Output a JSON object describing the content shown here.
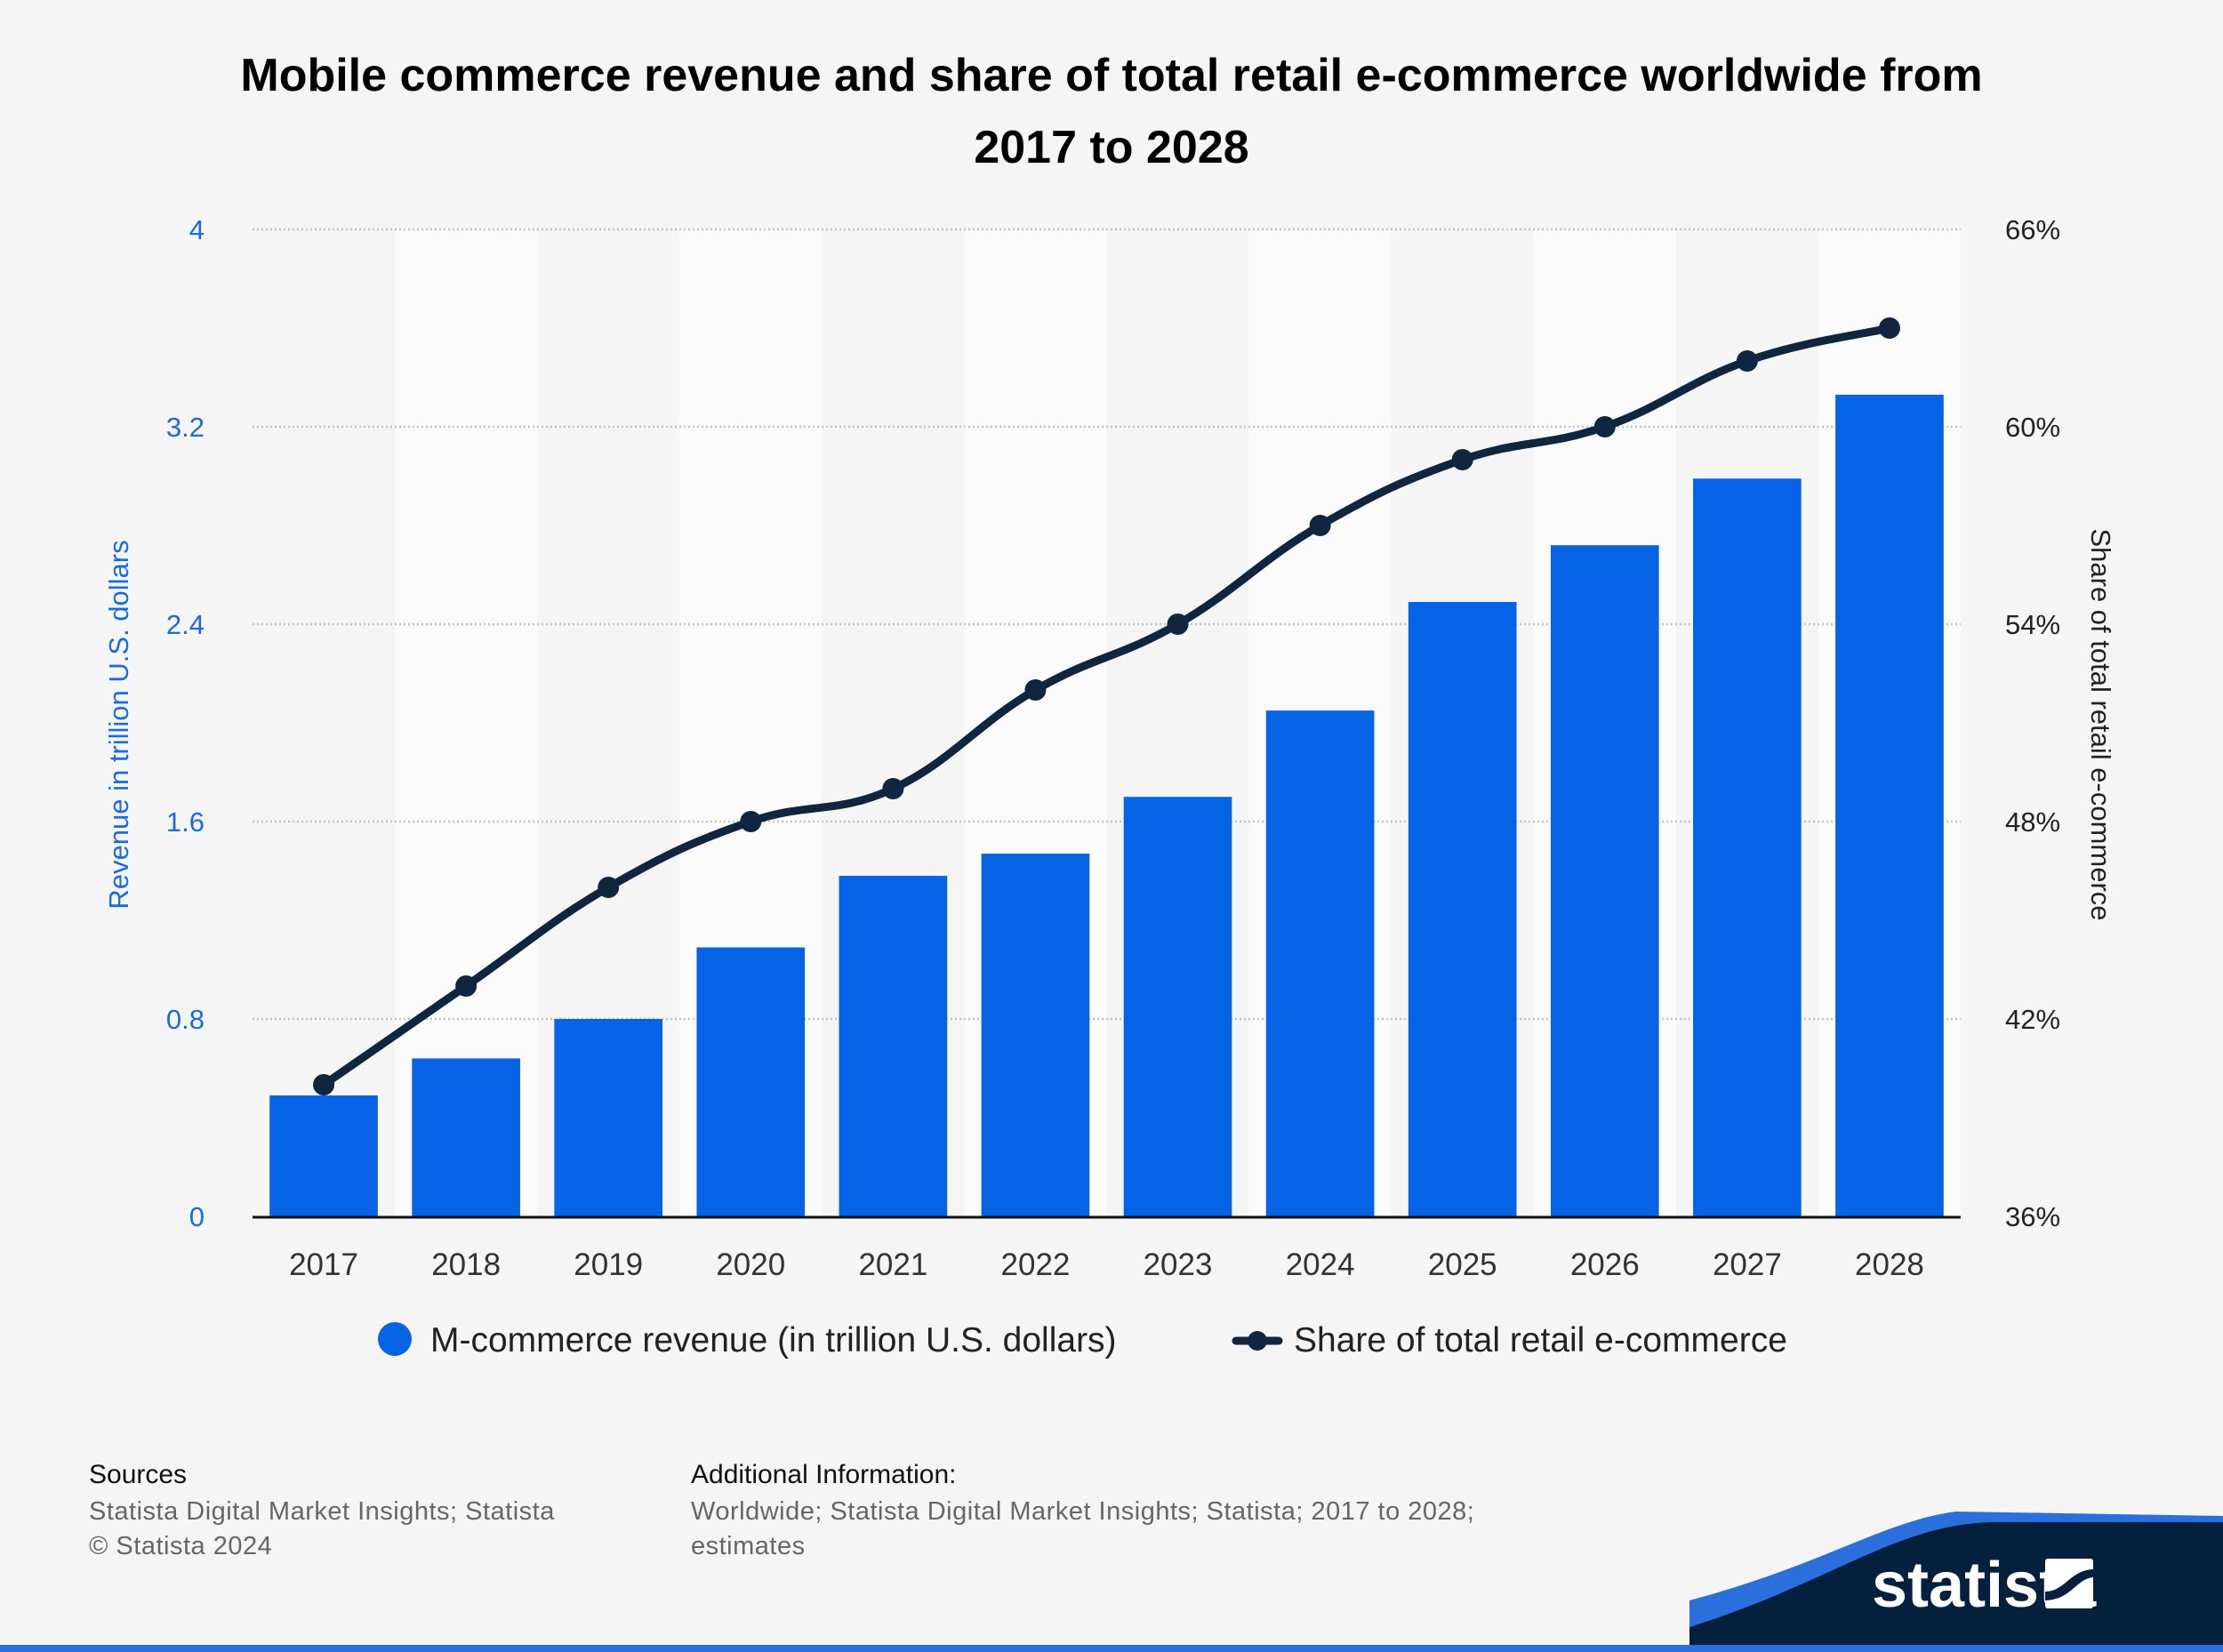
{
  "chart_data": {
    "type": "bar+line",
    "title": "Mobile commerce revenue and share of total retail e-commerce worldwide from 2017 to 2028",
    "title_lines": [
      "Mobile commerce revenue and share of total retail e-commerce worldwide from",
      "2017 to 2028"
    ],
    "categories": [
      "2017",
      "2018",
      "2019",
      "2020",
      "2021",
      "2022",
      "2023",
      "2024",
      "2025",
      "2026",
      "2027",
      "2028"
    ],
    "series": [
      {
        "name": "M-commerce revenue (in trillion U.S. dollars)",
        "type": "bar",
        "axis": "left",
        "color": "#0763e5",
        "values": [
          0.49,
          0.64,
          0.8,
          1.09,
          1.38,
          1.47,
          1.7,
          2.05,
          2.49,
          2.72,
          2.99,
          3.33
        ]
      },
      {
        "name": "Share of total retail e-commerce",
        "type": "line",
        "axis": "right",
        "color": "#0f2540",
        "unit": "%",
        "values": [
          40.0,
          43.0,
          46.0,
          48.0,
          49.0,
          52.0,
          54.0,
          57.0,
          59.0,
          60.0,
          62.0,
          63.0
        ]
      }
    ],
    "ylabel": "Revenue in trillion U.S. dollars",
    "ylabel_right": "Share of total retail e-commerce",
    "ylim": [
      0,
      4
    ],
    "yticks": [
      "0",
      "0.8",
      "1.6",
      "2.4",
      "3.2",
      "4"
    ],
    "ylim_right": [
      36,
      66
    ],
    "yticks_right": [
      "36%",
      "42%",
      "48%",
      "54%",
      "60%",
      "66%"
    ],
    "grid": true,
    "legend": "bottom"
  },
  "footer": {
    "sources_heading": "Sources",
    "sources_text": "Statista Digital Market Insights; Statista",
    "copyright": "© Statista 2024",
    "additional_heading": "Additional Information:",
    "additional_line1": "Worldwide; Statista Digital Market Insights; Statista; 2017 to 2028;",
    "additional_line2": "estimates",
    "logo_text": "statista"
  },
  "colors": {
    "accent": "#0763e5",
    "dark": "#0f2540",
    "background": "#f5f5f5"
  }
}
